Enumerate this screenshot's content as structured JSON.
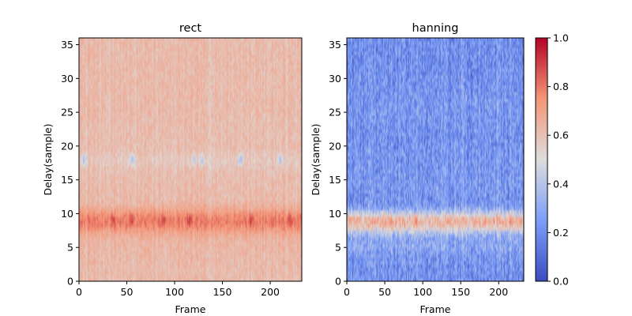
{
  "chart_data": [
    {
      "type": "heatmap",
      "title": "rect",
      "xlabel": "Frame",
      "ylabel": "Delay(sample)",
      "xlim": [
        0,
        233
      ],
      "ylim": [
        0,
        36
      ],
      "xticks": [
        "0",
        "50",
        "100",
        "150",
        "200"
      ],
      "yticks": [
        "0",
        "5",
        "10",
        "15",
        "20",
        "25",
        "30",
        "35"
      ],
      "value_range": [
        0,
        1
      ],
      "profile": {
        "delay": [
          0,
          2,
          4,
          6,
          7,
          8,
          9,
          10,
          11,
          12,
          14,
          16,
          17,
          18,
          19,
          20,
          22,
          25,
          30,
          35
        ],
        "value": [
          0.62,
          0.62,
          0.63,
          0.64,
          0.68,
          0.76,
          0.8,
          0.74,
          0.66,
          0.62,
          0.62,
          0.61,
          0.59,
          0.57,
          0.6,
          0.61,
          0.61,
          0.62,
          0.62,
          0.62
        ]
      },
      "features": [
        {
          "name": "strong band at delay 9",
          "delay": 9,
          "frames": [
            35,
            55,
            88,
            115,
            180,
            220
          ],
          "value": 0.9
        },
        {
          "name": "weak spots at delay 18",
          "delay": 18,
          "frames": [
            5,
            55,
            120,
            128,
            168,
            210
          ],
          "value": 0.35
        }
      ]
    },
    {
      "type": "heatmap",
      "title": "hanning",
      "xlabel": "Frame",
      "ylabel": "Delay(sample)",
      "xlim": [
        0,
        233
      ],
      "ylim": [
        0,
        36
      ],
      "xticks": [
        "0",
        "50",
        "100",
        "150",
        "200"
      ],
      "yticks": [
        "0",
        "5",
        "10",
        "15",
        "20",
        "25",
        "30",
        "35"
      ],
      "value_range": [
        0,
        1
      ],
      "profile": {
        "delay": [
          0,
          2,
          4,
          5,
          6,
          7,
          8,
          9,
          10,
          11,
          12,
          14,
          18,
          22,
          25,
          30,
          35
        ],
        "value": [
          0.22,
          0.22,
          0.25,
          0.3,
          0.28,
          0.36,
          0.58,
          0.68,
          0.45,
          0.25,
          0.22,
          0.24,
          0.23,
          0.22,
          0.24,
          0.22,
          0.21
        ]
      },
      "features": [
        {
          "name": "band at delay 9",
          "delay": 9,
          "frames": [
            5,
            55,
            90,
            135,
            180,
            215
          ],
          "value": 0.72
        }
      ]
    }
  ],
  "colorbar": {
    "ticks": [
      "0.0",
      "0.2",
      "0.4",
      "0.6",
      "0.8",
      "1.0"
    ],
    "range": [
      0,
      1
    ],
    "colormap": "coolwarm"
  }
}
